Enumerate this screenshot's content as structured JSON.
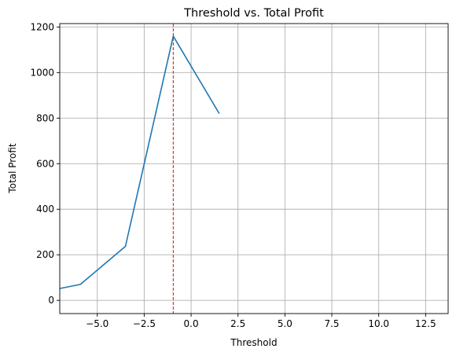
{
  "chart_data": {
    "type": "line",
    "title": "Threshold vs. Total Profit",
    "xlabel": "Threshold",
    "ylabel": "Total Profit",
    "xlim": [
      -7.0,
      13.7
    ],
    "ylim": [
      -58,
      1215
    ],
    "grid": true,
    "x_ticks": [
      -5.0,
      -2.5,
      0.0,
      2.5,
      5.0,
      7.5,
      10.0,
      12.5
    ],
    "x_tick_labels": [
      "−5.0",
      "−2.5",
      "0.0",
      "2.5",
      "5.0",
      "7.5",
      "10.0",
      "12.5"
    ],
    "y_ticks": [
      0,
      200,
      400,
      600,
      800,
      1000,
      1200
    ],
    "y_tick_labels": [
      "0",
      "200",
      "400",
      "600",
      "800",
      "1000",
      "1200"
    ],
    "series": [
      {
        "color": "#1f77b4",
        "x": [
          -7.0,
          -5.9,
          -3.5,
          -0.95,
          1.5
        ],
        "y": [
          52,
          70,
          237,
          1160,
          820
        ]
      }
    ],
    "vlines": [
      {
        "x": -0.95,
        "color": "#d62728",
        "style": "dashed"
      }
    ]
  }
}
